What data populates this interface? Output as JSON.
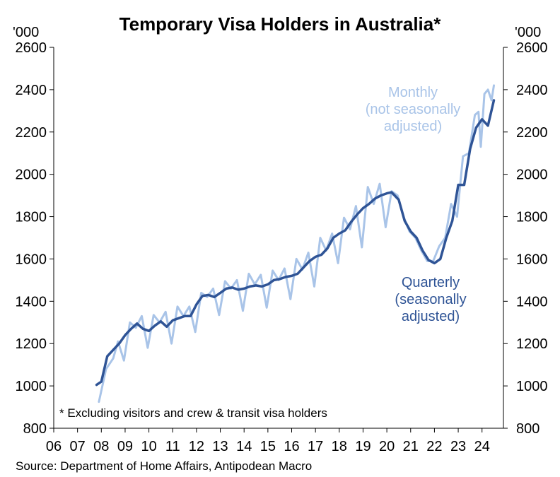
{
  "chart_data": {
    "type": "line",
    "title": "Temporary Visa Holders in Australia*",
    "y_unit_left": "'000",
    "y_unit_right": "'000",
    "ylim": [
      800,
      2600
    ],
    "y_ticks": [
      800,
      1000,
      1200,
      1400,
      1600,
      1800,
      2000,
      2200,
      2400,
      2600
    ],
    "xlim": [
      2006,
      2024.9
    ],
    "x_ticks": [
      2006,
      2007,
      2008,
      2009,
      2010,
      2011,
      2012,
      2013,
      2014,
      2015,
      2016,
      2017,
      2018,
      2019,
      2020,
      2021,
      2022,
      2023,
      2024
    ],
    "x_tick_labels": [
      "06",
      "07",
      "08",
      "09",
      "10",
      "11",
      "12",
      "13",
      "14",
      "15",
      "16",
      "17",
      "18",
      "19",
      "20",
      "21",
      "22",
      "23",
      "24"
    ],
    "grid": false,
    "note": "* Excluding visitors and crew & transit visa holders",
    "source": "Source: Department of Home Affairs, Antipodean Macro",
    "series": [
      {
        "name": "Monthly (not seasonally adjusted)",
        "label_lines": [
          "Monthly",
          "(not seasonally",
          "adjusted)"
        ],
        "color": "#a9c4e8",
        "points": [
          [
            2007.9,
            925
          ],
          [
            2008.2,
            1080
          ],
          [
            2008.5,
            1130
          ],
          [
            2008.7,
            1210
          ],
          [
            2008.95,
            1120
          ],
          [
            2009.2,
            1300
          ],
          [
            2009.45,
            1275
          ],
          [
            2009.7,
            1330
          ],
          [
            2009.95,
            1180
          ],
          [
            2010.2,
            1335
          ],
          [
            2010.45,
            1300
          ],
          [
            2010.7,
            1350
          ],
          [
            2010.95,
            1200
          ],
          [
            2011.2,
            1375
          ],
          [
            2011.45,
            1330
          ],
          [
            2011.7,
            1375
          ],
          [
            2011.95,
            1255
          ],
          [
            2012.2,
            1440
          ],
          [
            2012.45,
            1420
          ],
          [
            2012.7,
            1460
          ],
          [
            2012.95,
            1335
          ],
          [
            2013.2,
            1495
          ],
          [
            2013.45,
            1460
          ],
          [
            2013.7,
            1500
          ],
          [
            2013.95,
            1355
          ],
          [
            2014.2,
            1530
          ],
          [
            2014.45,
            1480
          ],
          [
            2014.7,
            1525
          ],
          [
            2014.95,
            1370
          ],
          [
            2015.2,
            1545
          ],
          [
            2015.45,
            1500
          ],
          [
            2015.7,
            1555
          ],
          [
            2015.95,
            1410
          ],
          [
            2016.2,
            1600
          ],
          [
            2016.45,
            1550
          ],
          [
            2016.7,
            1630
          ],
          [
            2016.95,
            1470
          ],
          [
            2017.2,
            1700
          ],
          [
            2017.45,
            1640
          ],
          [
            2017.7,
            1720
          ],
          [
            2017.95,
            1580
          ],
          [
            2018.2,
            1795
          ],
          [
            2018.45,
            1740
          ],
          [
            2018.7,
            1850
          ],
          [
            2018.95,
            1655
          ],
          [
            2019.2,
            1940
          ],
          [
            2019.45,
            1860
          ],
          [
            2019.7,
            1955
          ],
          [
            2019.95,
            1750
          ],
          [
            2020.2,
            1920
          ],
          [
            2020.45,
            1900
          ],
          [
            2020.7,
            1800
          ],
          [
            2020.95,
            1730
          ],
          [
            2021.2,
            1700
          ],
          [
            2021.45,
            1640
          ],
          [
            2021.7,
            1590
          ],
          [
            2021.95,
            1590
          ],
          [
            2022.2,
            1660
          ],
          [
            2022.45,
            1700
          ],
          [
            2022.7,
            1860
          ],
          [
            2022.95,
            1800
          ],
          [
            2023.2,
            2085
          ],
          [
            2023.45,
            2100
          ],
          [
            2023.7,
            2280
          ],
          [
            2023.85,
            2295
          ],
          [
            2023.95,
            2130
          ],
          [
            2024.1,
            2380
          ],
          [
            2024.25,
            2400
          ],
          [
            2024.4,
            2350
          ],
          [
            2024.5,
            2420
          ]
        ]
      },
      {
        "name": "Quarterly (seasonally adjusted)",
        "label_lines": [
          "Quarterly",
          "(seasonally",
          "adjusted)"
        ],
        "color": "#2f5496",
        "points": [
          [
            2007.8,
            1005
          ],
          [
            2008.0,
            1020
          ],
          [
            2008.25,
            1140
          ],
          [
            2008.5,
            1170
          ],
          [
            2008.75,
            1200
          ],
          [
            2009.0,
            1240
          ],
          [
            2009.25,
            1270
          ],
          [
            2009.5,
            1295
          ],
          [
            2009.75,
            1270
          ],
          [
            2010.0,
            1260
          ],
          [
            2010.25,
            1285
          ],
          [
            2010.5,
            1305
          ],
          [
            2010.75,
            1280
          ],
          [
            2011.0,
            1310
          ],
          [
            2011.25,
            1320
          ],
          [
            2011.5,
            1330
          ],
          [
            2011.75,
            1330
          ],
          [
            2012.0,
            1385
          ],
          [
            2012.25,
            1425
          ],
          [
            2012.5,
            1430
          ],
          [
            2012.75,
            1420
          ],
          [
            2013.0,
            1440
          ],
          [
            2013.25,
            1460
          ],
          [
            2013.5,
            1465
          ],
          [
            2013.75,
            1455
          ],
          [
            2014.0,
            1460
          ],
          [
            2014.25,
            1470
          ],
          [
            2014.5,
            1475
          ],
          [
            2014.75,
            1470
          ],
          [
            2015.0,
            1480
          ],
          [
            2015.25,
            1500
          ],
          [
            2015.5,
            1505
          ],
          [
            2015.75,
            1515
          ],
          [
            2016.0,
            1520
          ],
          [
            2016.25,
            1530
          ],
          [
            2016.5,
            1560
          ],
          [
            2016.75,
            1590
          ],
          [
            2017.0,
            1610
          ],
          [
            2017.25,
            1620
          ],
          [
            2017.5,
            1650
          ],
          [
            2017.75,
            1700
          ],
          [
            2018.0,
            1720
          ],
          [
            2018.25,
            1735
          ],
          [
            2018.5,
            1775
          ],
          [
            2018.75,
            1810
          ],
          [
            2019.0,
            1840
          ],
          [
            2019.25,
            1860
          ],
          [
            2019.5,
            1885
          ],
          [
            2019.75,
            1900
          ],
          [
            2020.0,
            1910
          ],
          [
            2020.2,
            1915
          ],
          [
            2020.5,
            1880
          ],
          [
            2020.75,
            1780
          ],
          [
            2021.0,
            1730
          ],
          [
            2021.25,
            1700
          ],
          [
            2021.5,
            1640
          ],
          [
            2021.75,
            1595
          ],
          [
            2022.0,
            1580
          ],
          [
            2022.25,
            1600
          ],
          [
            2022.5,
            1700
          ],
          [
            2022.75,
            1780
          ],
          [
            2023.0,
            1950
          ],
          [
            2023.25,
            1950
          ],
          [
            2023.5,
            2120
          ],
          [
            2023.75,
            2220
          ],
          [
            2024.0,
            2260
          ],
          [
            2024.25,
            2230
          ],
          [
            2024.5,
            2350
          ]
        ]
      }
    ]
  }
}
